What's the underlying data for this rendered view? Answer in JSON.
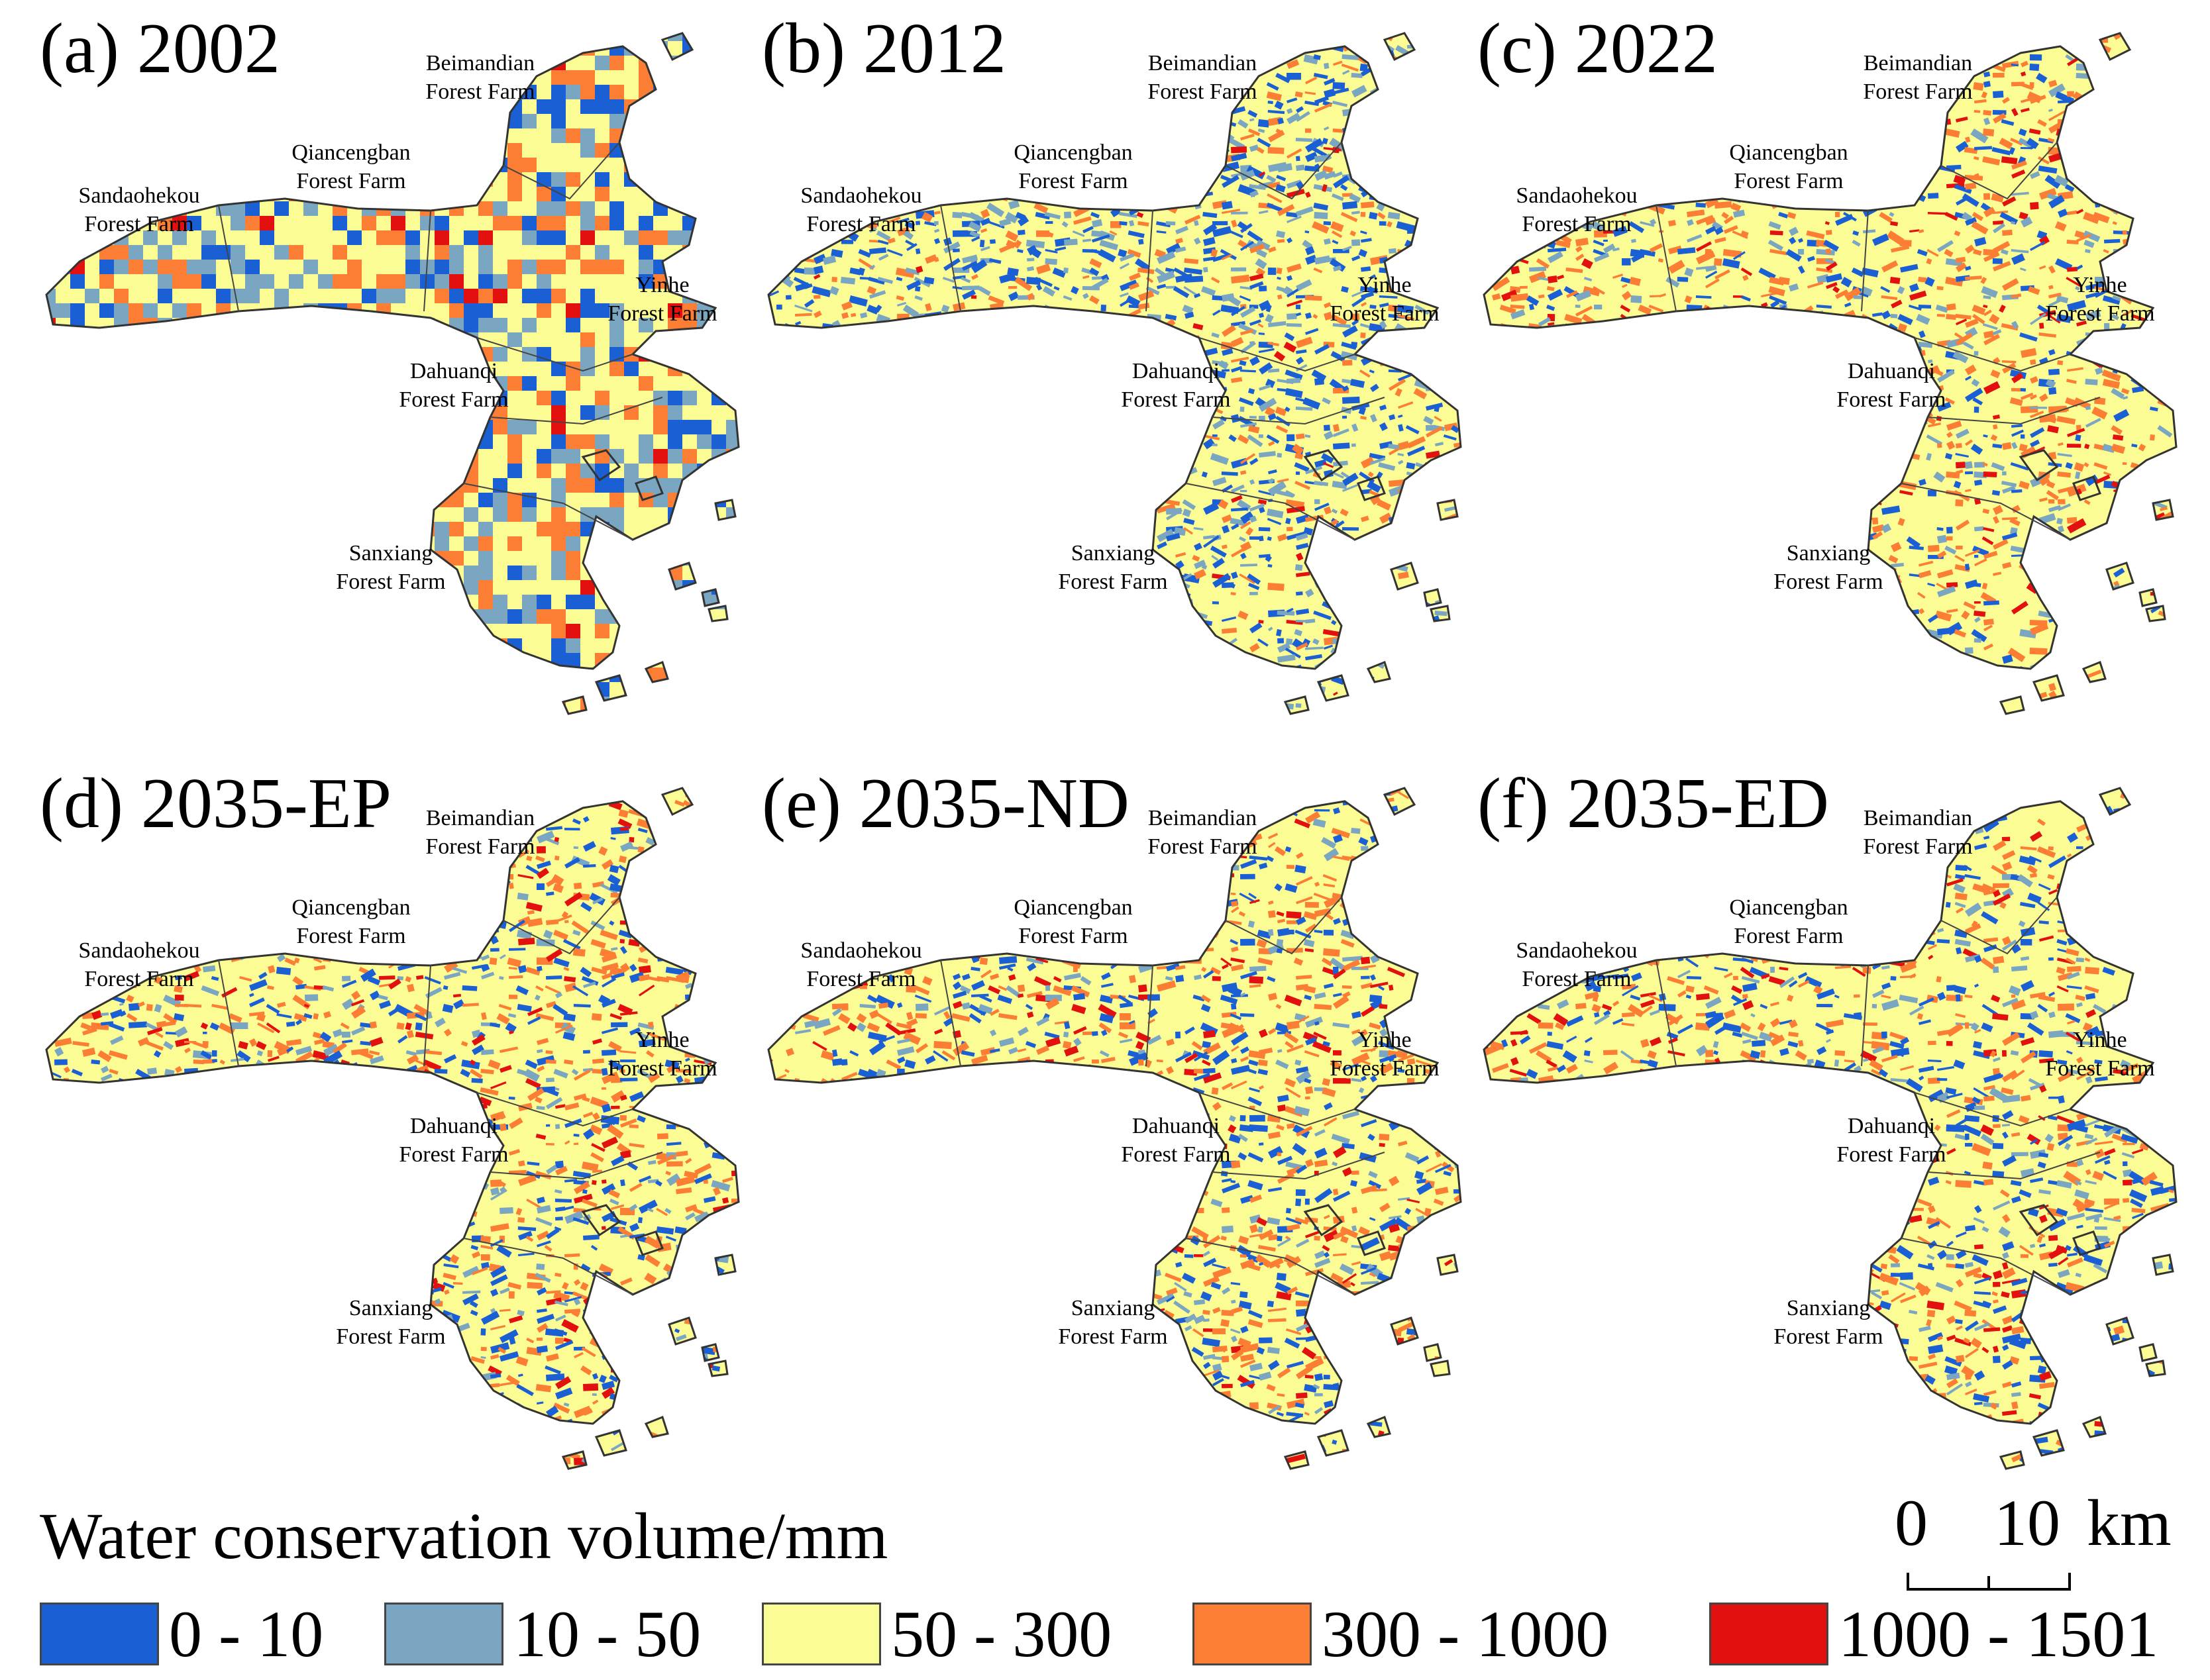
{
  "legend": {
    "title": "Water conservation volume/mm",
    "classes": [
      {
        "label": "0 - 10",
        "color": "#1a5fd4"
      },
      {
        "label": "10 - 50",
        "color": "#7aa6c2"
      },
      {
        "label": "50 - 300",
        "color": "#fcfc94"
      },
      {
        "label": "300 - 1000",
        "color": "#fb7e34"
      },
      {
        "label": "1000 - 1501",
        "color": "#e31010"
      }
    ]
  },
  "scale_bar": {
    "labels": [
      "0",
      "10",
      "km"
    ]
  },
  "panels": [
    {
      "title": "(a) 2002",
      "mix": [
        0.14,
        0.2,
        0.44,
        0.2,
        0.02
      ],
      "farms": [
        [
          "Beimandian",
          "Forest Farm"
        ],
        [
          "Qiancengban",
          "Forest Farm"
        ],
        [
          "Sandaohekou",
          "Forest Farm"
        ],
        [
          "Yinhe",
          "Forest Farm"
        ],
        [
          "Dahuanqi",
          "Forest Farm"
        ],
        [
          "Sanxiang",
          "Forest Farm"
        ]
      ]
    },
    {
      "title": "(b) 2012",
      "mix": [
        0.22,
        0.16,
        0.5,
        0.11,
        0.01
      ],
      "farms": [
        [
          "Beimandian",
          "Forest Farm"
        ],
        [
          "Qiancengban",
          "Forest Farm"
        ],
        [
          "Sandaohekou",
          "Forest Farm"
        ],
        [
          "Yinhe",
          "Forest Farm"
        ],
        [
          "Dahuanqi",
          "Forest Farm"
        ],
        [
          "Sanxiang",
          "Forest Farm"
        ]
      ]
    },
    {
      "title": "(c) 2022",
      "mix": [
        0.12,
        0.08,
        0.58,
        0.17,
        0.05
      ],
      "farms": [
        [
          "Beimandian",
          "Forest Farm"
        ],
        [
          "Qiancengban",
          "Forest Farm"
        ],
        [
          "Sandaohekou",
          "Forest Farm"
        ],
        [
          "Yinhe",
          "Forest Farm"
        ],
        [
          "Dahuanqi",
          "Forest Farm"
        ],
        [
          "Sanxiang",
          "Forest Farm"
        ]
      ]
    },
    {
      "title": "(d) 2035-EP",
      "mix": [
        0.13,
        0.07,
        0.58,
        0.17,
        0.05
      ],
      "farms": [
        [
          "Beimandian",
          "Forest Farm"
        ],
        [
          "Qiancengban",
          "Forest Farm"
        ],
        [
          "Sandaohekou",
          "Forest Farm"
        ],
        [
          "Yinhe",
          "Forest Farm"
        ],
        [
          "Dahuanqi",
          "Forest Farm"
        ],
        [
          "Sanxiang",
          "Forest Farm"
        ]
      ]
    },
    {
      "title": "(e) 2035-ND",
      "mix": [
        0.14,
        0.07,
        0.58,
        0.16,
        0.05
      ],
      "farms": [
        [
          "Beimandian",
          "Forest Farm"
        ],
        [
          "Qiancengban",
          "Forest Farm"
        ],
        [
          "Sandaohekou",
          "Forest Farm"
        ],
        [
          "Yinhe",
          "Forest Farm"
        ],
        [
          "Dahuanqi",
          "Forest Farm"
        ],
        [
          "Sanxiang",
          "Forest Farm"
        ]
      ]
    },
    {
      "title": "(f) 2035-ED",
      "mix": [
        0.14,
        0.07,
        0.58,
        0.16,
        0.05
      ],
      "farms": [
        [
          "Beimandian",
          "Forest Farm"
        ],
        [
          "Qiancengban",
          "Forest Farm"
        ],
        [
          "Sandaohekou",
          "Forest Farm"
        ],
        [
          "Yinhe",
          "Forest Farm"
        ],
        [
          "Dahuanqi",
          "Forest Farm"
        ],
        [
          "Sanxiang",
          "Forest Farm"
        ]
      ]
    }
  ]
}
